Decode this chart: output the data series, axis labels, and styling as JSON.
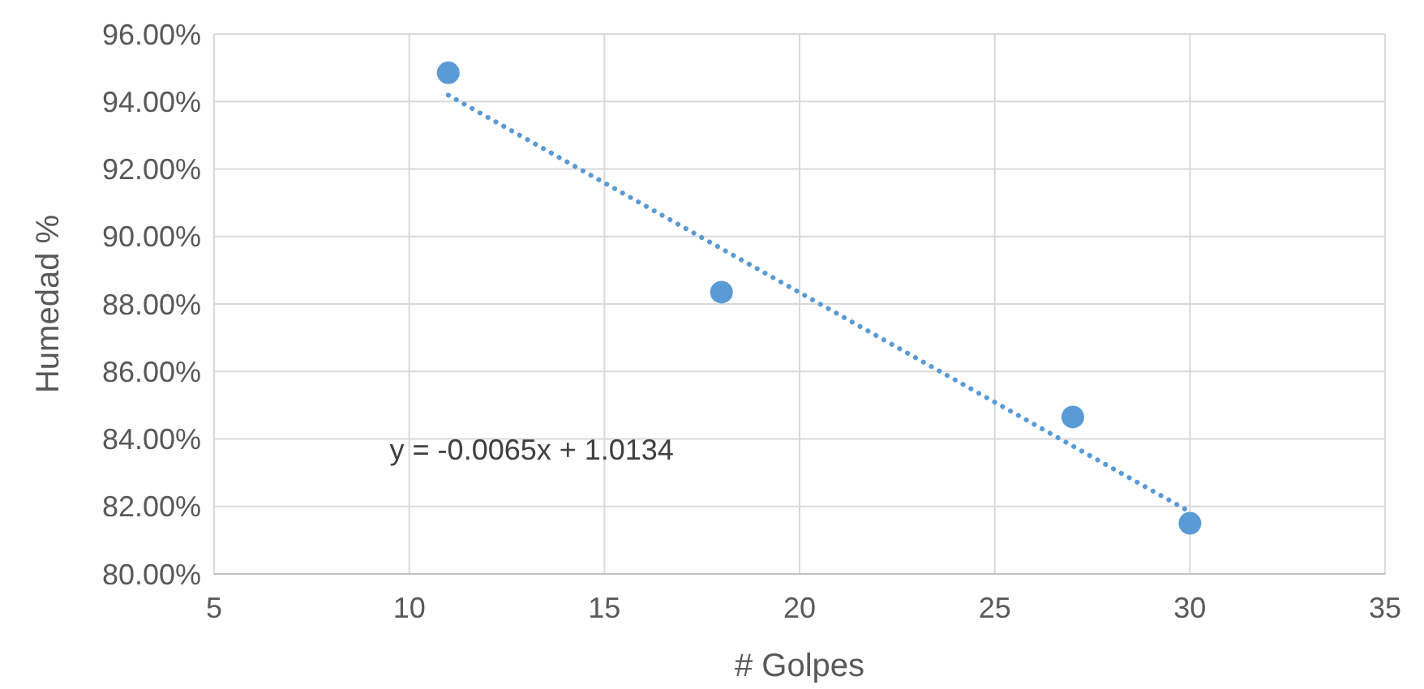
{
  "chart_data": {
    "type": "scatter",
    "xlabel": "# Golpes",
    "ylabel": "Humedad %",
    "xlim": [
      5,
      35
    ],
    "xticks": [
      5,
      10,
      15,
      20,
      25,
      30,
      35
    ],
    "ylim": [
      80,
      96
    ],
    "yticks": [
      {
        "value": 80,
        "label": "80.00%"
      },
      {
        "value": 82,
        "label": "82.00%"
      },
      {
        "value": 84,
        "label": "84.00%"
      },
      {
        "value": 86,
        "label": "86.00%"
      },
      {
        "value": 88,
        "label": "88.00%"
      },
      {
        "value": 90,
        "label": "90.00%"
      },
      {
        "value": 92,
        "label": "92.00%"
      },
      {
        "value": 94,
        "label": "94.00%"
      },
      {
        "value": 96,
        "label": "96.00%"
      }
    ],
    "grid": true,
    "marker": "circle",
    "series": [
      {
        "type": "scatter",
        "color": "#5b9bd5",
        "x": [
          11,
          18,
          27,
          30
        ],
        "values": [
          94.85,
          88.35,
          84.65,
          81.5
        ]
      },
      {
        "type": "line",
        "color": "#5b9bd5",
        "line_style": "dotted",
        "marker": "none",
        "x": [
          11,
          30
        ],
        "values": [
          94.19,
          81.84
        ]
      }
    ],
    "annotations": [
      "y = -0.0065x + 1.0134"
    ]
  }
}
